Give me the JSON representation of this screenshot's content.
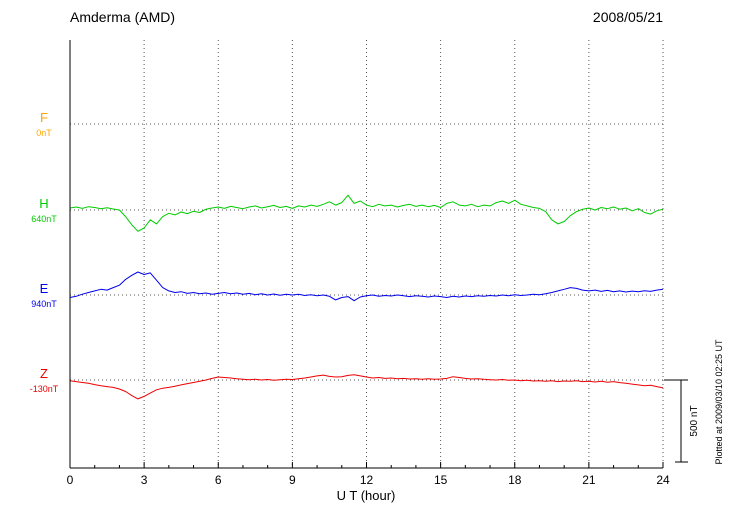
{
  "chart_data": {
    "type": "line",
    "title": "Amderma (AMD)",
    "date": "2008/05/21",
    "xlabel": "U T (hour)",
    "x_range": [
      0,
      24
    ],
    "x_ticks": [
      0,
      3,
      6,
      9,
      12,
      15,
      18,
      21,
      24
    ],
    "x_step_hours": 0.25,
    "grid": "dotted",
    "scale_bar": {
      "label": "500 nT",
      "nT": 500
    },
    "plotted_at": "Plotted at 2009/03/10 02:25 UT",
    "series": [
      {
        "name": "F",
        "baseline_label": "0nT",
        "color": "#FFA500",
        "values": null
      },
      {
        "name": "H",
        "baseline_label": "640nT",
        "color": "#00CC00",
        "values": [
          12,
          18,
          10,
          20,
          15,
          8,
          14,
          6,
          0,
          -40,
          -90,
          -130,
          -110,
          -60,
          -85,
          -40,
          -20,
          -30,
          -12,
          -22,
          -8,
          -15,
          5,
          12,
          18,
          10,
          22,
          15,
          8,
          18,
          25,
          12,
          20,
          28,
          15,
          22,
          10,
          25,
          18,
          30,
          22,
          35,
          50,
          30,
          45,
          90,
          40,
          55,
          30,
          20,
          35,
          25,
          30,
          18,
          28,
          35,
          22,
          30,
          20,
          28,
          15,
          40,
          50,
          30,
          25,
          35,
          20,
          30,
          25,
          45,
          55,
          40,
          60,
          35,
          25,
          15,
          10,
          -10,
          -60,
          -85,
          -70,
          -35,
          -10,
          5,
          12,
          0,
          15,
          8,
          18,
          5,
          12,
          -5,
          8,
          -15,
          -25,
          -5,
          5
        ]
      },
      {
        "name": "E",
        "baseline_label": "940nT",
        "color": "#0000EE",
        "values": [
          -15,
          -8,
          5,
          15,
          25,
          35,
          30,
          45,
          60,
          95,
          120,
          140,
          125,
          135,
          90,
          45,
          25,
          15,
          20,
          10,
          15,
          8,
          12,
          5,
          10,
          15,
          8,
          12,
          5,
          10,
          2,
          8,
          0,
          6,
          -2,
          4,
          0,
          5,
          -3,
          2,
          -5,
          0,
          -8,
          -30,
          -15,
          -10,
          -35,
          -12,
          -5,
          0,
          -8,
          -3,
          -6,
          0,
          -5,
          -10,
          -4,
          -8,
          -12,
          -6,
          -10,
          -15,
          -8,
          -12,
          -6,
          -10,
          -4,
          -8,
          -3,
          -6,
          0,
          -5,
          2,
          -3,
          0,
          5,
          2,
          8,
          15,
          25,
          35,
          45,
          40,
          30,
          25,
          30,
          22,
          28,
          20,
          25,
          18,
          24,
          20,
          26,
          22,
          30,
          35
        ]
      },
      {
        "name": "Z",
        "baseline_label": "-130nT",
        "color": "#EE0000",
        "values": [
          -5,
          -10,
          -15,
          -20,
          -28,
          -35,
          -40,
          -45,
          -55,
          -70,
          -95,
          -115,
          -100,
          -80,
          -60,
          -50,
          -45,
          -38,
          -30,
          -22,
          -15,
          -8,
          0,
          10,
          18,
          15,
          12,
          8,
          5,
          2,
          5,
          0,
          3,
          -2,
          2,
          5,
          3,
          8,
          12,
          18,
          25,
          30,
          22,
          18,
          20,
          28,
          32,
          25,
          18,
          12,
          15,
          10,
          12,
          8,
          10,
          6,
          8,
          5,
          8,
          4,
          6,
          10,
          20,
          15,
          10,
          6,
          8,
          4,
          2,
          0,
          3,
          -2,
          0,
          -4,
          -2,
          -6,
          -4,
          -8,
          -5,
          -10,
          -6,
          -8,
          -5,
          -10,
          -8,
          -12,
          -8,
          -14,
          -10,
          -16,
          -20,
          -25,
          -30,
          -35,
          -32,
          -40,
          -48
        ]
      }
    ]
  }
}
